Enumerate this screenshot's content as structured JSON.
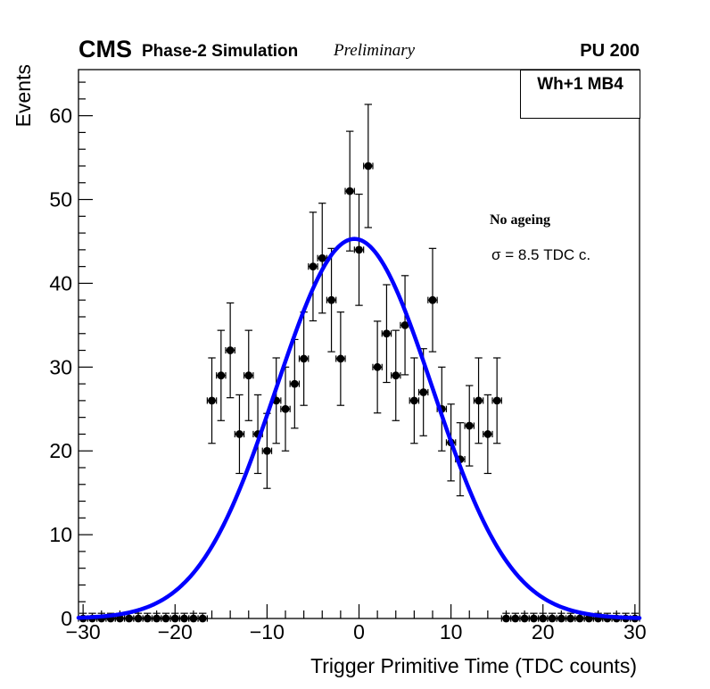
{
  "header": {
    "experiment": "CMS",
    "sim_label": "Phase-2 Simulation",
    "preliminary": "Preliminary",
    "pileup": "PU 200"
  },
  "plot_labels": {
    "chamber": "Wh+1 MB4",
    "annotation_line1": "No ageing",
    "annotation_line2": "σ = 8.5 TDC c."
  },
  "chart_data": {
    "type": "scatter",
    "title": "",
    "xlabel": "Trigger Primitive Time (TDC counts)",
    "ylabel": "Events",
    "xlim": [
      -30.5,
      30.5
    ],
    "ylim": [
      0,
      65.5
    ],
    "x_major_ticks": [
      -30,
      -20,
      -10,
      0,
      10,
      20,
      30
    ],
    "x_minor_step": 2,
    "y_major_ticks": [
      0,
      10,
      20,
      30,
      40,
      50,
      60
    ],
    "y_minor_step": 2,
    "grid": false,
    "legend_position": "none",
    "marker_color": "#000000",
    "error_model": "y error = sqrt(y), x error = half bin width 0.5",
    "zero_bin_upper_error": 0.62,
    "x": [
      -30,
      -29,
      -28,
      -27,
      -26,
      -25,
      -24,
      -23,
      -22,
      -21,
      -20,
      -19,
      -18,
      -17,
      -16,
      -15,
      -14,
      -13,
      -12,
      -11,
      -10,
      -9,
      -8,
      -7,
      -6,
      -5,
      -4,
      -3,
      -2,
      -1,
      0,
      1,
      2,
      3,
      4,
      5,
      6,
      7,
      8,
      9,
      10,
      11,
      12,
      13,
      14,
      15,
      16,
      17,
      18,
      19,
      20,
      21,
      22,
      23,
      24,
      25,
      26,
      27,
      28,
      29,
      30
    ],
    "y": [
      0,
      0,
      0,
      0,
      0,
      0,
      0,
      0,
      0,
      0,
      0,
      0,
      0,
      0,
      26,
      29,
      32,
      22,
      29,
      22,
      20,
      26,
      25,
      28,
      31,
      42,
      43,
      38,
      31,
      51,
      44,
      54,
      30,
      34,
      29,
      35,
      26,
      27,
      38,
      25,
      21,
      19,
      23,
      26,
      22,
      26,
      0,
      0,
      0,
      0,
      0,
      0,
      0,
      0,
      0,
      0,
      0,
      0,
      0,
      0,
      0
    ],
    "fit": {
      "shape": "gaussian",
      "amplitude": 45.3,
      "mean": -0.5,
      "sigma": 8.5,
      "sigma_label": "8.5 TDC c.",
      "color": "#0000ff",
      "line_width": 4.5
    }
  }
}
